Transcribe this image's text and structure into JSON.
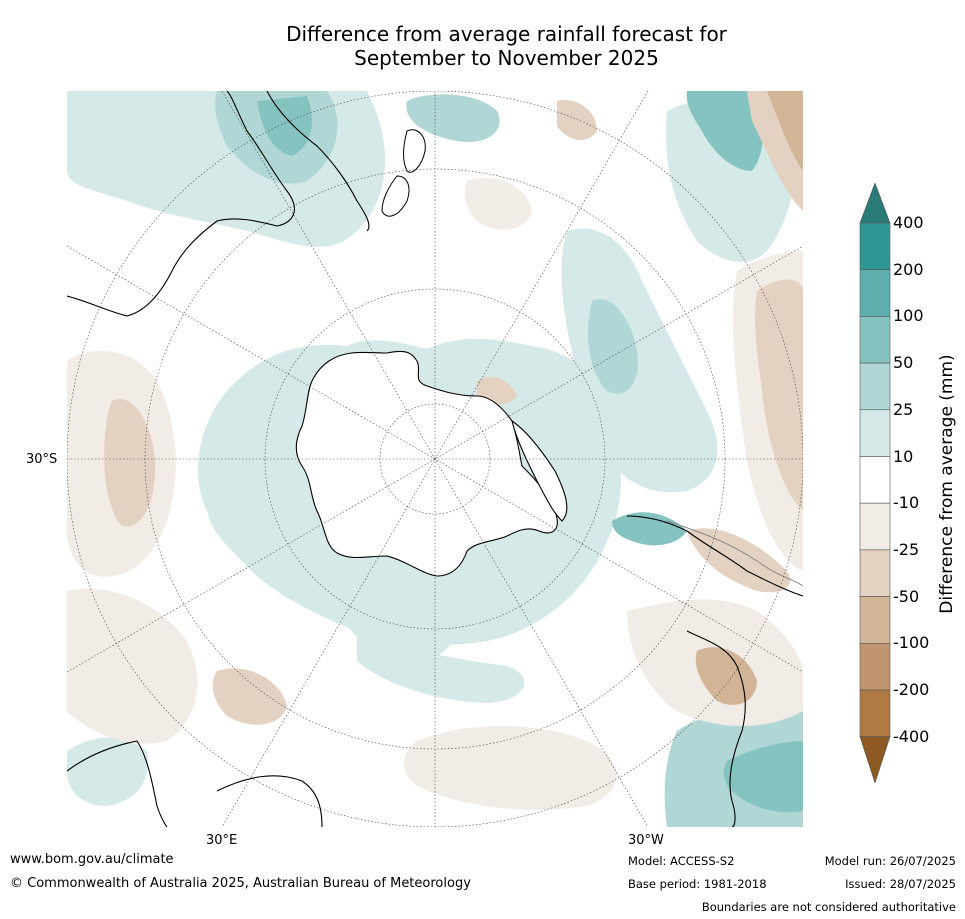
{
  "title_line1": "Difference from average rainfall forecast for",
  "title_line2": "September to November 2025",
  "map": {
    "projection": "south-polar stereographic",
    "lat_label": "30°S",
    "lon_labels": {
      "east": "30°E",
      "west": "30°W"
    },
    "colors": {
      "ocean_neutral": "#ffffff",
      "wet_25": "#d5e9e8",
      "wet_50": "#b0d7d6",
      "wet_100": "#85c3c1",
      "wet_200": "#5daeac",
      "wet_400": "#2f9896",
      "dry_25": "#f1ece6",
      "dry_50": "#e3d2c2",
      "dry_100": "#d2b596",
      "dry_200": "#c19570",
      "coastline": "#000000",
      "grid": "#444444",
      "boundary": "#888888"
    }
  },
  "colorbar": {
    "title": "Difference from average (mm)",
    "ticks": [
      "400",
      "200",
      "100",
      "50",
      "25",
      "10",
      "-10",
      "-25",
      "-50",
      "-100",
      "-200",
      "-400"
    ],
    "colors": [
      "#2a7b78",
      "#2f9896",
      "#5daeac",
      "#85c3c1",
      "#b0d7d6",
      "#d5e9e8",
      "#ffffff",
      "#f1ece6",
      "#e3d2c2",
      "#d2b596",
      "#c19570",
      "#b07a44",
      "#8c5a22"
    ]
  },
  "footer": {
    "website": "www.bom.gov.au/climate",
    "copyright": "© Commonwealth of Australia 2025, Australian Bureau of Meteorology",
    "model": "Model: ACCESS-S2",
    "base_period": "Base period: 1981-2018",
    "model_run": "Model run: 26/07/2025",
    "issued": "Issued: 28/07/2025",
    "disclaimer": "Boundaries are not considered authoritative"
  }
}
